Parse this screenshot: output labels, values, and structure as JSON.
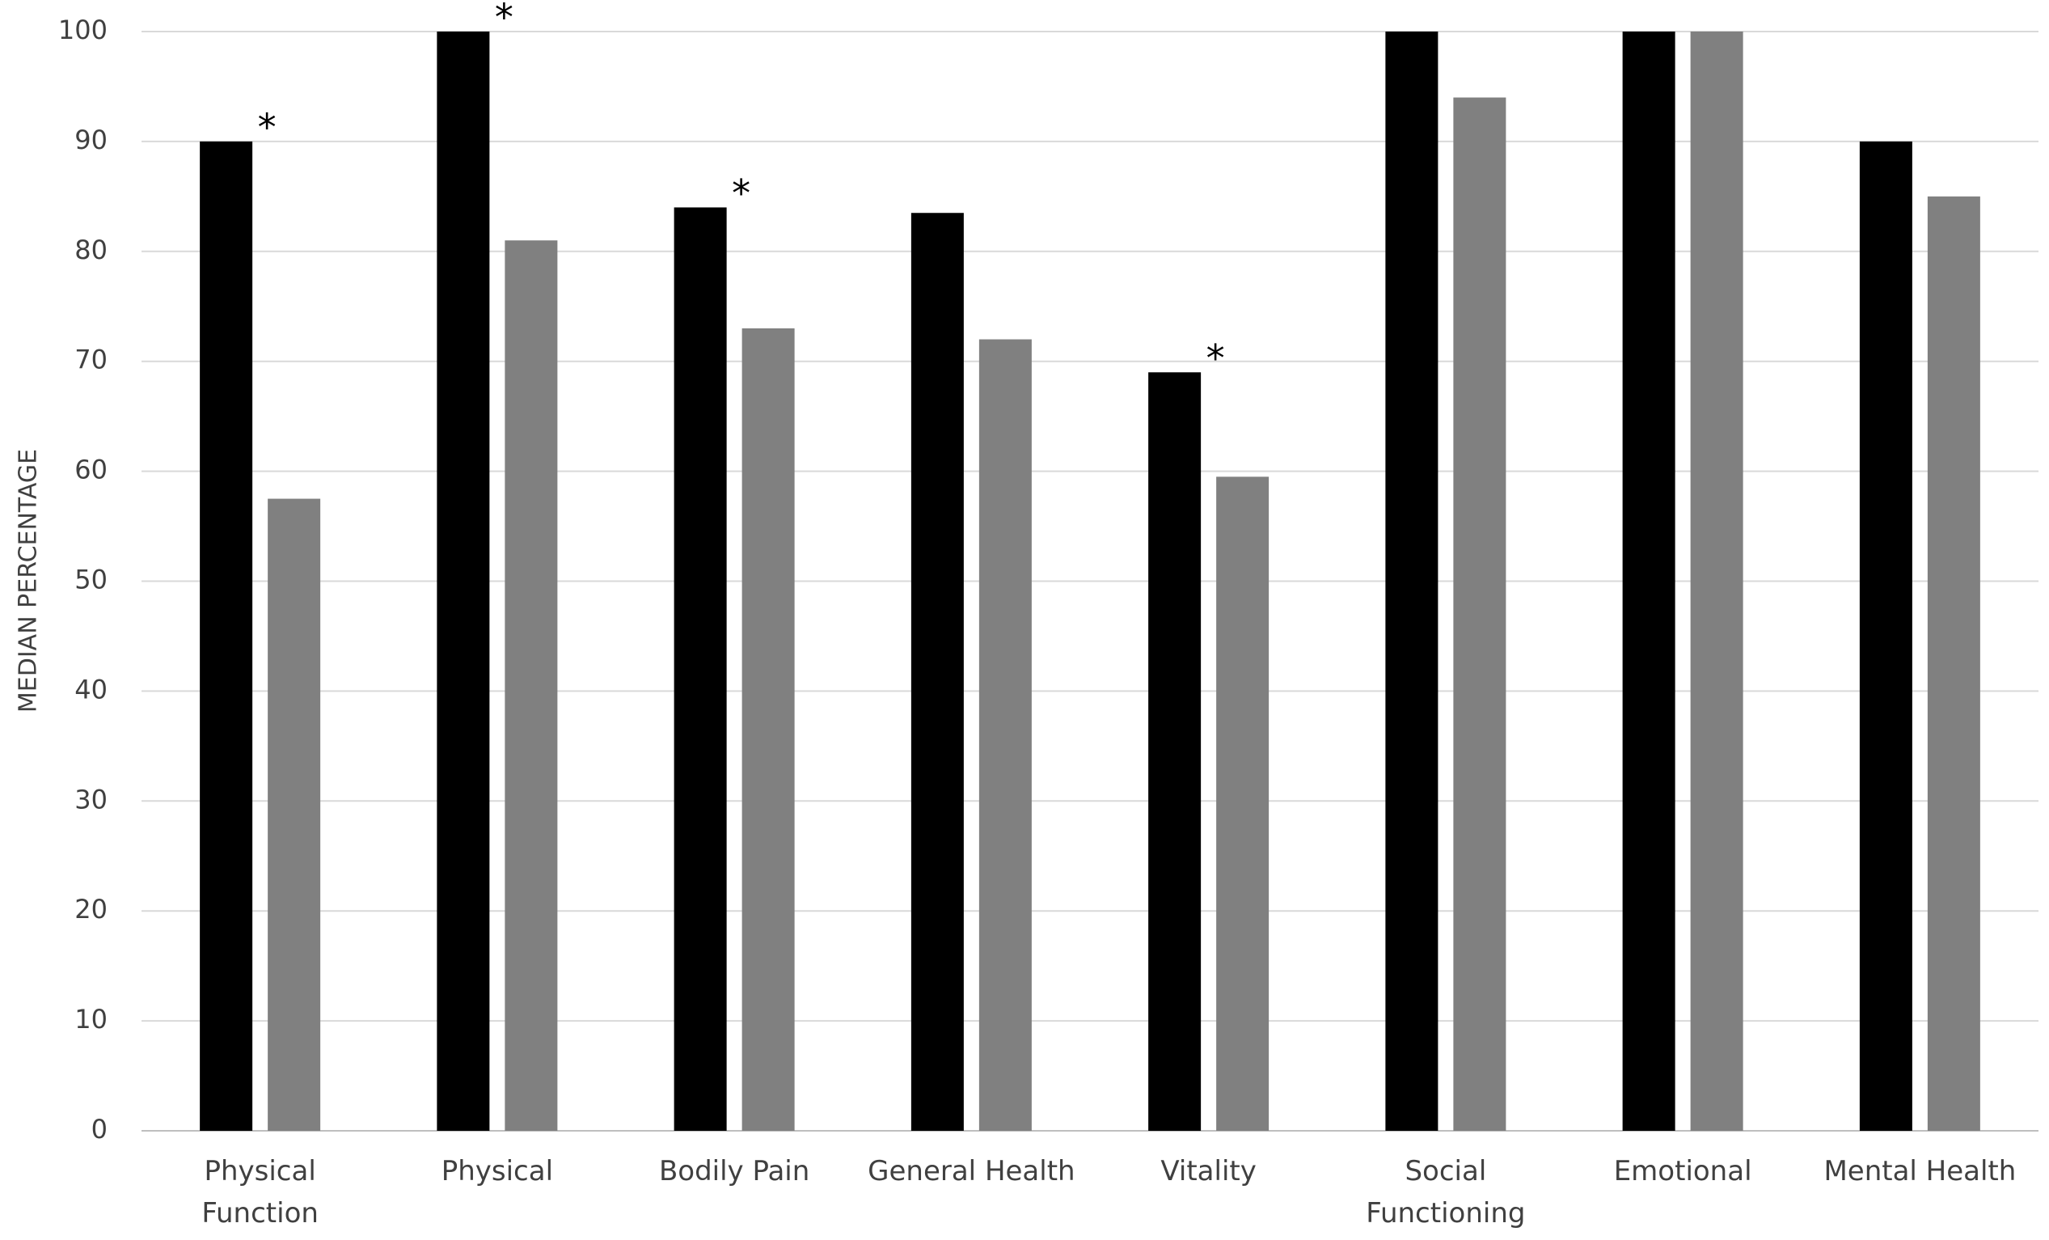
{
  "chart_data": {
    "type": "bar",
    "y_label": "MEDIAN PERCENTAGE",
    "categories": [
      "Physical\nFunction",
      "Physical",
      "Bodily Pain",
      "General Health",
      "Vitality",
      "Social\nFunctioning",
      "Emotional",
      "Mental Health"
    ],
    "series": [
      {
        "color": "#000000",
        "values": [
          90,
          100,
          84,
          83.5,
          69,
          100,
          100,
          90
        ],
        "significance": [
          "*",
          "*",
          "*",
          null,
          "*",
          null,
          null,
          null
        ]
      },
      {
        "color": "#808080",
        "values": [
          57.5,
          81,
          73,
          72,
          59.5,
          94,
          100,
          85
        ]
      }
    ],
    "ylim": [
      0,
      100
    ],
    "yticks": [
      0,
      10,
      20,
      30,
      40,
      50,
      60,
      70,
      80,
      90,
      100
    ],
    "grid": true
  }
}
